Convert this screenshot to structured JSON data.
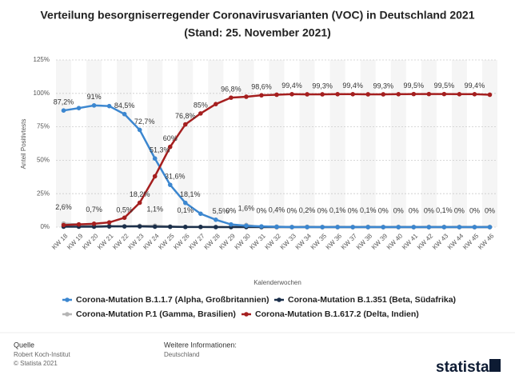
{
  "chart_data": {
    "type": "line",
    "title": "Verteilung besorgniserregender Coronavirusvarianten (VOC) in Deutschland 2021",
    "subtitle": "(Stand: 25. November 2021)",
    "y_label": "Anteil Positivtests",
    "x_label": "Kalenderwochen",
    "categories": [
      "KW 18",
      "KW 19",
      "KW 20",
      "KW 21",
      "KW 22",
      "KW 23",
      "KW 24",
      "KW 25",
      "KW 26",
      "KW 27",
      "KW 28",
      "KW 29",
      "KW 30",
      "KW 31",
      "KW 32",
      "KW 33",
      "KW 34",
      "KW 35",
      "KW 36",
      "KW 37",
      "KW 38",
      "KW 39",
      "KW 40",
      "KW 41",
      "KW 42",
      "KW 43",
      "KW 44",
      "KW 45",
      "KW 46"
    ],
    "series": [
      {
        "name": "Corona-Mutation B.1.1.7 (Alpha, Großbritannien)",
        "color": "#3c87d0",
        "values": [
          87.2,
          89,
          91,
          90.5,
          84.5,
          72.7,
          51.3,
          31.6,
          18.1,
          10,
          5.5,
          2,
          1,
          0.5,
          0.2,
          0,
          0,
          0,
          0,
          0,
          0,
          0,
          0,
          0,
          0,
          0,
          0,
          0,
          0
        ],
        "value_labels": [
          "87,2%",
          null,
          "91%",
          null,
          "84,5%",
          "72,7%",
          "51,3%",
          "31,6%",
          "18,1%",
          null,
          "5,5%",
          null,
          null,
          null,
          null,
          null,
          null,
          null,
          null,
          null,
          null,
          null,
          null,
          null,
          null,
          null,
          null,
          null,
          null
        ]
      },
      {
        "name": "Corona-Mutation B.1.351 (Beta, Südafrika)",
        "color": "#1b2f4a",
        "values": [
          0.3,
          0.3,
          0.3,
          0.5,
          0.5,
          0.5,
          0.3,
          0.2,
          0.1,
          0.1,
          0,
          0,
          0,
          0,
          0,
          0,
          0,
          0,
          0,
          0,
          0,
          0,
          0,
          0,
          0,
          0,
          0,
          0,
          0
        ]
      },
      {
        "name": "Corona-Mutation P.1 (Gamma, Brasilien)",
        "color": "#b5b5b5",
        "values": [
          2.6,
          2,
          0.7,
          1,
          0.5,
          1,
          1.1,
          0.5,
          0.1,
          0.1,
          0,
          0,
          1.6,
          0,
          0.4,
          0,
          0.2,
          0,
          0.1,
          0,
          0.1,
          0,
          0,
          0,
          0,
          0.1,
          0,
          0,
          0
        ],
        "value_labels": [
          "2,6%",
          null,
          "0,7%",
          null,
          "0,5%",
          null,
          "1,1%",
          null,
          "0,1%",
          null,
          null,
          "0%",
          "1,6%",
          "0%",
          "0,4%",
          "0%",
          "0,2%",
          "0%",
          "0,1%",
          "0%",
          "0,1%",
          "0%",
          "0%",
          "0%",
          "0%",
          "0,1%",
          "0%",
          "0%",
          "0%"
        ]
      },
      {
        "name": "Corona-Mutation B.1.617.2 (Delta, Indien)",
        "color": "#a51f1f",
        "values": [
          1.5,
          2,
          2.5,
          3.5,
          7,
          18.2,
          38,
          60,
          76.8,
          85,
          92,
          96.8,
          97.5,
          98.6,
          99,
          99.4,
          99.3,
          99.3,
          99.4,
          99.4,
          99.3,
          99.3,
          99.4,
          99.5,
          99.5,
          99.5,
          99.4,
          99.4,
          99
        ],
        "value_labels": [
          null,
          null,
          null,
          null,
          null,
          "18,2%",
          null,
          "60%",
          "76,8%",
          "85%",
          null,
          "96,8%",
          null,
          "98,6%",
          null,
          "99,4%",
          null,
          "99,3%",
          null,
          "99,4%",
          null,
          "99,3%",
          null,
          "99,5%",
          null,
          "99,5%",
          null,
          "99,4%",
          null
        ]
      }
    ],
    "ylim": [
      0,
      125
    ],
    "yticks": [
      {
        "value": 0,
        "label": "0%"
      },
      {
        "value": 25,
        "label": "25%"
      },
      {
        "value": 50,
        "label": "50%"
      },
      {
        "value": 75,
        "label": "75%"
      },
      {
        "value": 100,
        "label": "100%"
      },
      {
        "value": 125,
        "label": "125%"
      }
    ],
    "grid": true
  },
  "footer": {
    "source_title": "Quelle",
    "source": "Robert Koch-Institut",
    "copyright": "© Statista 2021",
    "info_title": "Weitere Informationen:",
    "info": "Deutschland",
    "logo": "statista"
  }
}
